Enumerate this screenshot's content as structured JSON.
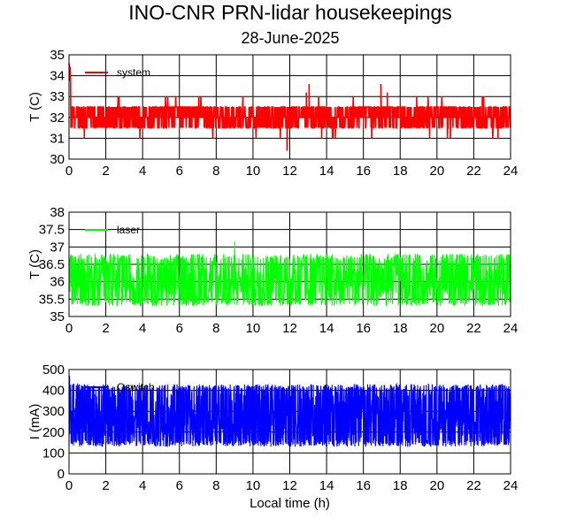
{
  "figure": {
    "title": "INO-CNR PRN-lidar housekeepings",
    "subtitle": "28-June-2025"
  },
  "chart_data": [
    {
      "type": "line",
      "series": [
        {
          "name": "system",
          "color": "#ff0000"
        }
      ],
      "xlabel": "",
      "ylabel": "T (C)",
      "xlim": [
        0,
        24
      ],
      "ylim": [
        30,
        35
      ],
      "xticks": [
        "0",
        "2",
        "4",
        "6",
        "8",
        "10",
        "12",
        "14",
        "16",
        "18",
        "20",
        "22",
        "24"
      ],
      "yticks": [
        "30",
        "31",
        "32",
        "33",
        "34",
        "35"
      ],
      "grid": true,
      "legend_position": "top-left",
      "data_description": {
        "baseline": 32.0,
        "fluctuation_levels": [
          31.5,
          32.0,
          32.5
        ],
        "min_spike": 30.4,
        "max_spike": 34.6
      }
    },
    {
      "type": "line",
      "series": [
        {
          "name": "laser",
          "color": "#00ff00"
        }
      ],
      "xlabel": "",
      "ylabel": "T (C)",
      "xlim": [
        0,
        24
      ],
      "ylim": [
        35,
        38
      ],
      "xticks": [
        "0",
        "2",
        "4",
        "6",
        "8",
        "10",
        "12",
        "14",
        "16",
        "18",
        "20",
        "22",
        "24"
      ],
      "yticks": [
        "35",
        "35.5",
        "36",
        "36.5",
        "37",
        "37.5",
        "38"
      ],
      "grid": true,
      "legend_position": "top-left",
      "data_description": {
        "band_low": 35.3,
        "band_high": 36.8,
        "max_spike": 37.15
      }
    },
    {
      "type": "line",
      "series": [
        {
          "name": "Qswitch",
          "color": "#0000ff"
        }
      ],
      "xlabel": "Local time (h)",
      "ylabel": "I (mA)",
      "xlim": [
        0,
        24
      ],
      "ylim": [
        0,
        500
      ],
      "xticks": [
        "0",
        "2",
        "4",
        "6",
        "8",
        "10",
        "12",
        "14",
        "16",
        "18",
        "20",
        "22",
        "24"
      ],
      "yticks": [
        "0",
        "100",
        "200",
        "300",
        "400",
        "500"
      ],
      "grid": true,
      "legend_position": "top-left",
      "data_description": {
        "band_low": 140,
        "band_high": 420,
        "max_spike": 470
      }
    }
  ]
}
